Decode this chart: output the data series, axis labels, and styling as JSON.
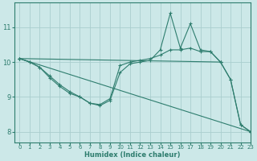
{
  "background_color": "#cce8e8",
  "grid_color": "#aacece",
  "line_color": "#2e7d6e",
  "marker": "+",
  "xlabel": "Humidex (Indice chaleur)",
  "xlim": [
    -0.5,
    23
  ],
  "ylim": [
    7.7,
    11.7
  ],
  "xticks": [
    0,
    1,
    2,
    3,
    4,
    5,
    6,
    7,
    8,
    9,
    10,
    11,
    12,
    13,
    14,
    15,
    16,
    17,
    18,
    19,
    20,
    21,
    22,
    23
  ],
  "yticks": [
    8,
    9,
    10,
    11
  ],
  "line1_x": [
    0,
    1,
    2,
    3,
    4,
    5,
    6,
    7,
    8,
    9,
    10,
    11,
    12,
    13,
    14,
    15,
    16,
    17,
    18,
    19,
    20,
    21,
    22,
    23
  ],
  "line1_y": [
    10.1,
    10.0,
    9.85,
    9.6,
    9.35,
    9.15,
    9.0,
    8.82,
    8.75,
    8.9,
    9.7,
    9.95,
    10.0,
    10.05,
    10.35,
    11.4,
    10.4,
    11.1,
    10.35,
    10.3,
    10.0,
    9.5,
    8.2,
    8.0
  ],
  "line2_x": [
    0,
    1,
    2,
    3,
    4,
    5,
    6,
    7,
    8,
    9,
    10,
    11,
    12,
    13,
    14,
    15,
    16,
    17,
    18,
    19,
    20,
    21,
    22,
    23
  ],
  "line2_y": [
    10.1,
    10.0,
    9.85,
    9.55,
    9.3,
    9.1,
    9.0,
    8.82,
    8.78,
    8.95,
    9.9,
    10.0,
    10.05,
    10.1,
    10.2,
    10.35,
    10.35,
    10.4,
    10.3,
    10.3,
    10.0,
    9.5,
    8.2,
    8.0
  ],
  "line3_x": [
    0,
    20
  ],
  "line3_y": [
    10.1,
    10.0
  ],
  "line4_x": [
    0,
    23
  ],
  "line4_y": [
    10.1,
    8.0
  ]
}
